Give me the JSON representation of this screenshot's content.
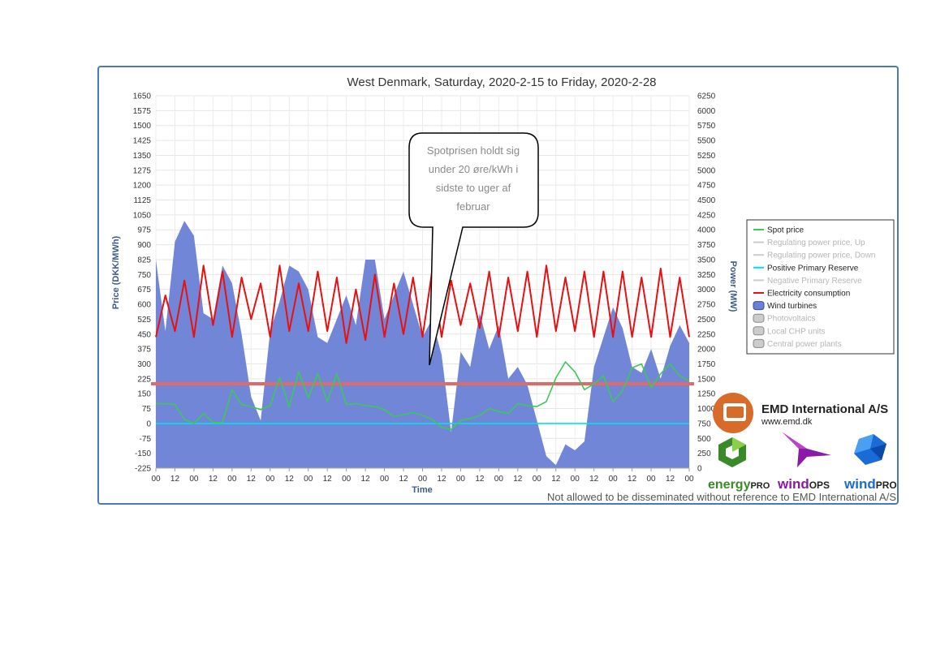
{
  "chart_data": {
    "type": "area",
    "title": "West Denmark, Saturday, 2020-2-15 to Friday, 2020-2-28",
    "xlabel": "Time",
    "ylabel_left": "Price (DKK/MWh)",
    "ylabel_right": "Power (MW)",
    "ylim_left": [
      -225,
      1650
    ],
    "ylim_right": [
      0,
      6250
    ],
    "yticks_left": [
      "1650",
      "1575",
      "1500",
      "1425",
      "1350",
      "1275",
      "1200",
      "1125",
      "1050",
      "975",
      "900",
      "825",
      "750",
      "675",
      "600",
      "525",
      "450",
      "375",
      "300",
      "225",
      "150",
      "75",
      "0",
      "-75",
      "-150",
      "-225"
    ],
    "yticks_right": [
      "6250",
      "6000",
      "5750",
      "5500",
      "5250",
      "5000",
      "4750",
      "4500",
      "4250",
      "4000",
      "3750",
      "3500",
      "3250",
      "3000",
      "2750",
      "2500",
      "2250",
      "2000",
      "1750",
      "1500",
      "1250",
      "1000",
      "750",
      "500",
      "250",
      "0"
    ],
    "xticks": [
      "00",
      "12",
      "00",
      "12",
      "00",
      "12",
      "00",
      "12",
      "00",
      "12",
      "00",
      "12",
      "00",
      "12",
      "00",
      "12",
      "00",
      "12",
      "00",
      "12",
      "00",
      "12",
      "00",
      "12",
      "00",
      "12",
      "00",
      "12",
      "00"
    ],
    "grid": true,
    "legend_position": "right",
    "legend": [
      {
        "label": "Spot price",
        "color": "#3cc85a",
        "active": true,
        "kind": "line"
      },
      {
        "label": "Regulating power price, Up",
        "color": "#cccccc",
        "active": false,
        "kind": "line"
      },
      {
        "label": "Regulating power price, Down",
        "color": "#cccccc",
        "active": false,
        "kind": "line"
      },
      {
        "label": "Positive Primary Reserve",
        "color": "#00e0f0",
        "active": true,
        "kind": "line"
      },
      {
        "label": "Negative Primary Reserve",
        "color": "#cccccc",
        "active": false,
        "kind": "line"
      },
      {
        "label": "Electricity consumption",
        "color": "#e81010",
        "active": true,
        "kind": "line"
      },
      {
        "label": "Wind turbines",
        "color": "#6a7fd6",
        "active": true,
        "kind": "area"
      },
      {
        "label": "Photovoltaics",
        "color": "#cccccc",
        "active": false,
        "kind": "area"
      },
      {
        "label": "Local CHP units",
        "color": "#cccccc",
        "active": false,
        "kind": "area"
      },
      {
        "label": "Central power plants",
        "color": "#cccccc",
        "active": false,
        "kind": "area"
      }
    ],
    "x_hours": [
      0,
      6,
      12,
      18,
      24,
      30,
      36,
      42,
      48,
      54,
      60,
      66,
      72,
      78,
      84,
      90,
      96,
      102,
      108,
      114,
      120,
      126,
      132,
      138,
      144,
      150,
      156,
      162,
      168,
      174,
      180,
      186,
      192,
      198,
      204,
      210,
      216,
      222,
      228,
      234,
      240,
      246,
      252,
      258,
      264,
      270,
      276,
      282,
      288,
      294,
      300,
      306,
      312,
      318,
      324,
      330,
      336
    ],
    "series": [
      {
        "name": "Wind turbines",
        "axis": "right",
        "values": [
          3500,
          2300,
          3800,
          4150,
          3900,
          2600,
          2500,
          3400,
          3100,
          2250,
          1200,
          800,
          2300,
          2800,
          3400,
          3300,
          3000,
          2200,
          2100,
          2500,
          2900,
          2400,
          3500,
          3500,
          2500,
          2900,
          3300,
          2750,
          2200,
          2500,
          1900,
          600,
          1950,
          1700,
          2600,
          2000,
          2400,
          1500,
          1700,
          1400,
          800,
          200,
          50,
          400,
          300,
          450,
          1700,
          2200,
          2700,
          2350,
          1700,
          1600,
          2000,
          1500,
          2050,
          2400,
          2100
        ]
      },
      {
        "name": "Electricity consumption",
        "axis": "right",
        "values": [
          2200,
          2900,
          2300,
          3150,
          2200,
          3400,
          2400,
          3300,
          2200,
          3200,
          2500,
          3100,
          2200,
          3400,
          2300,
          3100,
          2300,
          3300,
          2300,
          3200,
          2100,
          3000,
          2150,
          3250,
          2200,
          3100,
          2250,
          3200,
          2200,
          3300,
          2200,
          3150,
          2400,
          3100,
          2350,
          3300,
          2200,
          3200,
          2300,
          3300,
          2200,
          3400,
          2300,
          3200,
          2300,
          3300,
          2200,
          3300,
          2200,
          3300,
          2200,
          3200,
          2200,
          3350,
          2200,
          3200,
          2200
        ]
      },
      {
        "name": "Spot price",
        "axis": "left",
        "values": [
          100,
          100,
          95,
          20,
          0,
          50,
          5,
          5,
          170,
          95,
          85,
          70,
          90,
          230,
          85,
          260,
          130,
          250,
          110,
          250,
          95,
          100,
          90,
          85,
          70,
          35,
          45,
          55,
          40,
          20,
          -20,
          -30,
          15,
          25,
          40,
          75,
          60,
          50,
          100,
          90,
          85,
          110,
          230,
          310,
          260,
          170,
          200,
          240,
          110,
          165,
          280,
          300,
          180,
          250,
          300,
          240,
          215
        ]
      },
      {
        "name": "Positive Primary Reserve",
        "axis": "left",
        "values": [
          0,
          0,
          0,
          0,
          0,
          0,
          0,
          0,
          0,
          0,
          0,
          0,
          0,
          0,
          0,
          0,
          0,
          0,
          0,
          0,
          0,
          0,
          0,
          0,
          0,
          0,
          0,
          0,
          0,
          0,
          0,
          0,
          0,
          0,
          0,
          0,
          0,
          0,
          0,
          0,
          0,
          0,
          0,
          0,
          0,
          0,
          0,
          0,
          0,
          0,
          0,
          0,
          0,
          0,
          0,
          0,
          0
        ]
      }
    ],
    "reference_line": {
      "label": "",
      "value": 200,
      "axis": "left",
      "color": "#e06a6a"
    },
    "annotation": "Spotprisen holdt sig under 20 øre/kWh i sidste to uger af februar"
  },
  "branding": {
    "company": "EMD International  A/S",
    "url": "www.emd.dk",
    "products": {
      "energy_prefix": "energy",
      "energy_suffix": "PRO",
      "windops_prefix": "wind",
      "windops_suffix": "OPS",
      "windpro_prefix": "wind",
      "windpro_suffix": "PRO"
    },
    "disclaimer": "Not allowed to be disseminated without reference to EMD International A/S",
    "colors": {
      "emd_orange": "#d86a2a",
      "energypro_green": "#3a8a2a",
      "windops_purple": "#8a1aa8",
      "windpro_blue": "#1a6ad8"
    }
  }
}
